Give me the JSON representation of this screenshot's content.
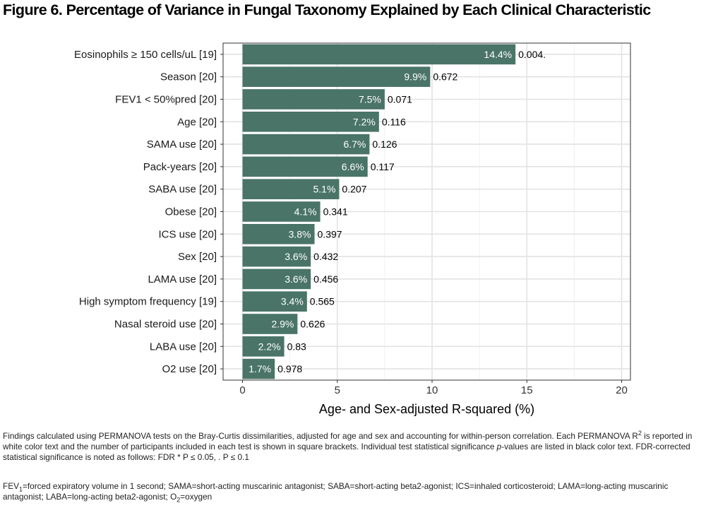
{
  "figure": {
    "title": "Figure 6. Percentage of Variance in Fungal Taxonomy Explained by Each Clinical Characteristic"
  },
  "chart_data": {
    "type": "bar",
    "orientation": "horizontal",
    "xlabel": "Age- and Sex-adjusted R-squared (%)",
    "ylabel": "",
    "xlim": [
      0,
      20
    ],
    "xticks": [
      "0",
      "5",
      "10",
      "15",
      "20"
    ],
    "grid": true,
    "bar_color": "#4a7468",
    "categories": [
      "Eosinophils ≥ 150 cells/uL [19]",
      "Season [20]",
      "FEV1 < 50%pred [20]",
      "Age [20]",
      "SAMA use [20]",
      "Pack-years [20]",
      "SABA use [20]",
      "Obese [20]",
      "ICS use [20]",
      "Sex [20]",
      "LAMA use [20]",
      "High symptom frequency [19]",
      "Nasal steroid use [20]",
      "LABA use [20]",
      "O2 use [20]"
    ],
    "values": [
      14.4,
      9.9,
      7.5,
      7.2,
      6.7,
      6.6,
      5.1,
      4.1,
      3.8,
      3.6,
      3.6,
      3.4,
      2.9,
      2.2,
      1.7
    ],
    "value_labels": [
      "14.4%",
      "9.9%",
      "7.5%",
      "7.2%",
      "6.7%",
      "6.6%",
      "5.1%",
      "4.1%",
      "3.8%",
      "3.6%",
      "3.6%",
      "3.4%",
      "2.9%",
      "2.2%",
      "1.7%"
    ],
    "p_labels": [
      "0.004.",
      "0.672",
      "0.071",
      "0.116",
      "0.126",
      "0.117",
      "0.207",
      "0.341",
      "0.397",
      "0.432",
      "0.456",
      "0.565",
      "0.626",
      "0.83",
      "0.978"
    ]
  },
  "footnotes": {
    "p1_a": "Findings calculated using PERMANOVA tests on the Bray-Curtis dissimilarities, adjusted for age and sex and accounting for within-person correlation. Each PERMANOVA R",
    "p1_sup": "2",
    "p1_b": " is reported in white color text and the number of participants included in each test is shown in square brackets. Individual test statistical significance ",
    "p1_italic": "p",
    "p1_c": "-values are listed in black color text. FDR-corrected statistical significance is noted as follows: FDR * P ≤ 0.05, . P ≤ 0.1",
    "p2_a": "FEV",
    "p2_sub1": "1",
    "p2_b": "=forced expiratory volume in 1 second; SAMA=short-acting muscarinic antagonist; SABA=short-acting beta2-agonist; ICS=inhaled corticosteroid; LAMA=long-acting muscarinic antagonist; LABA=long-acting beta2-agonist; O",
    "p2_sub2": "2",
    "p2_c": "=oxygen"
  }
}
